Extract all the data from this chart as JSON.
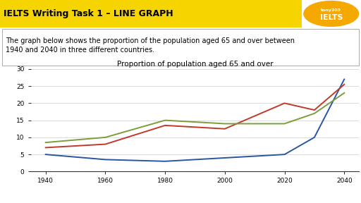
{
  "title": "Proportion of population aged 65 and over",
  "header_text": "IELTS Writing Task 1 – LINE GRAPH",
  "description": "The graph below shows the proportion of the population aged 65 and over between\n1940 and 2040 in three different countries.",
  "years": [
    1940,
    1960,
    1980,
    2000,
    2020,
    2030,
    2040
  ],
  "japan": [
    5,
    3.5,
    3,
    4,
    5,
    10,
    27
  ],
  "sweden": [
    7,
    8,
    13.5,
    12.5,
    20,
    18,
    25.5
  ],
  "usa": [
    8.5,
    10,
    15,
    14,
    14,
    17,
    23
  ],
  "japan_color": "#2955a3",
  "sweden_color": "#c0392b",
  "usa_color": "#7a9e3b",
  "ylim": [
    0,
    30
  ],
  "yticks": [
    0,
    5,
    10,
    15,
    20,
    25,
    30
  ],
  "xticks": [
    1940,
    1960,
    1980,
    2000,
    2020,
    2040
  ],
  "header_bg": "#f5d400",
  "desc_border_color": "#aaaaaa",
  "logo_bg": "#f5a800",
  "fig_width": 5.12,
  "fig_height": 2.88,
  "fig_dpi": 100
}
